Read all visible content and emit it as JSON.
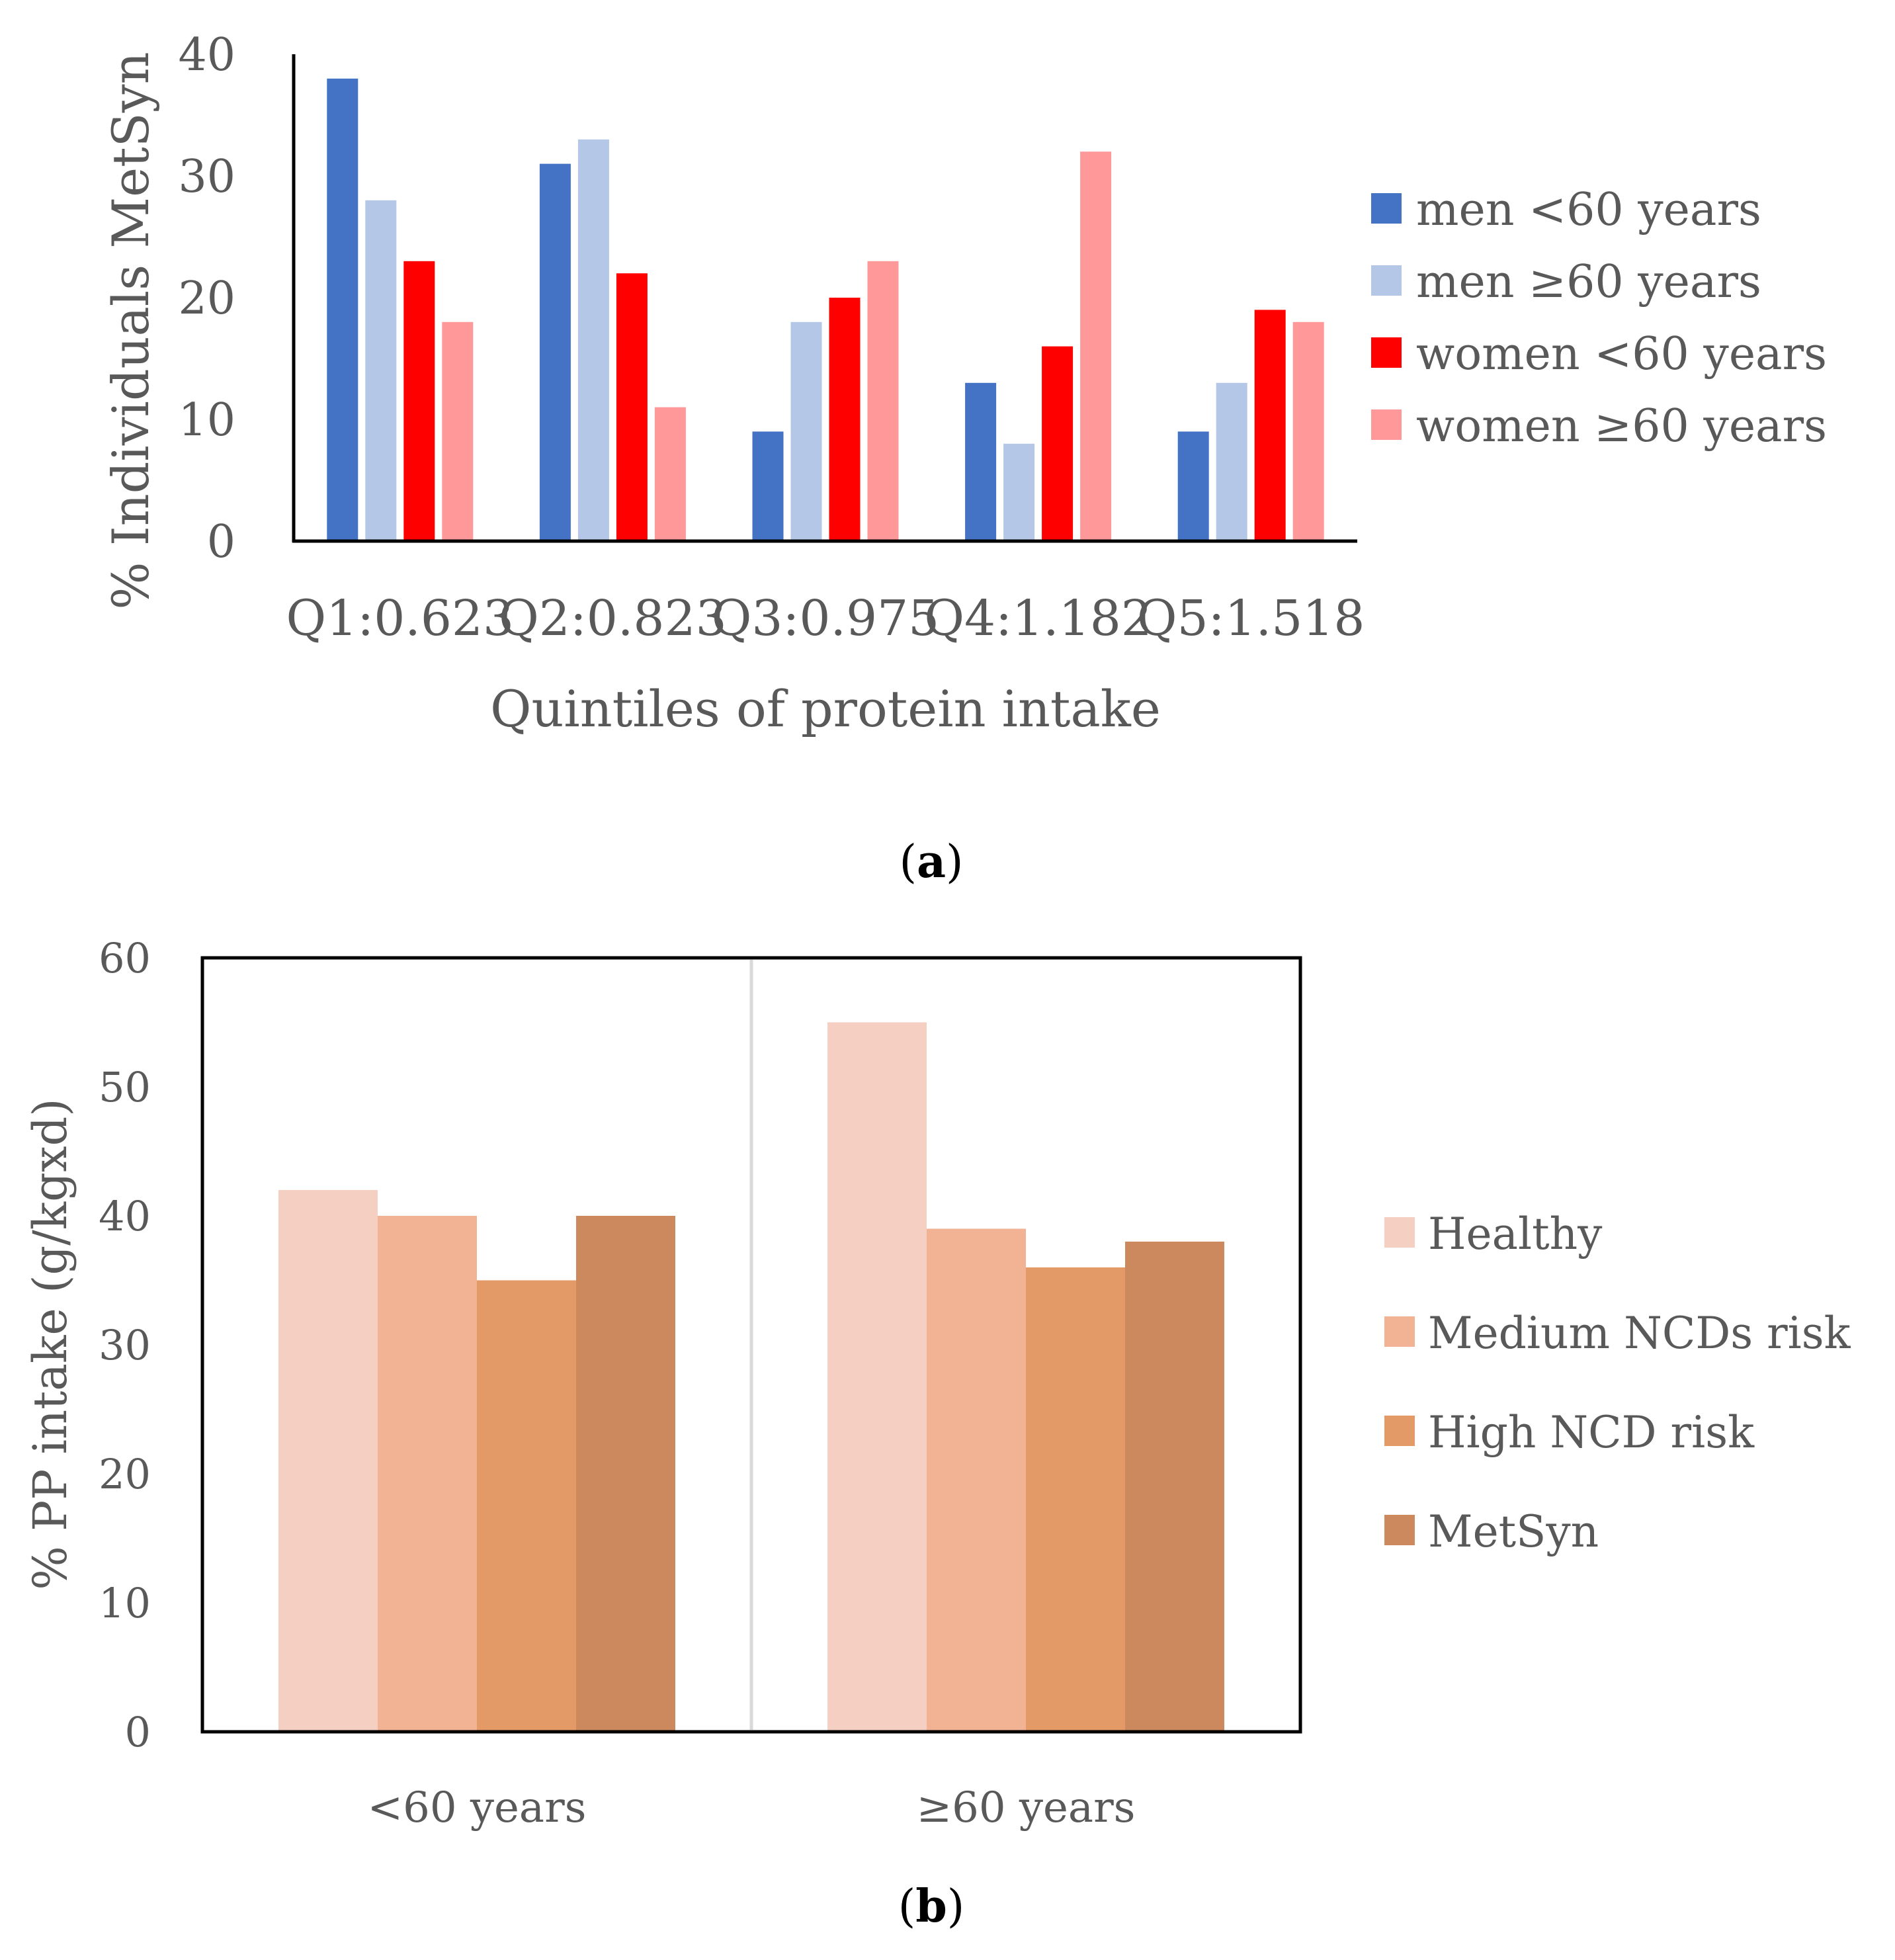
{
  "chart_data": [
    {
      "id": "a",
      "type": "bar",
      "caption": "a",
      "xlabel": "Quintiles of protein intake",
      "ylabel": "% Individuals MetSyn",
      "ylim": [
        0,
        40
      ],
      "yticks": [
        0,
        10,
        20,
        30,
        40
      ],
      "grid": false,
      "legend_position": "right",
      "categories": [
        "Q1:0.623",
        "Q2:0.823",
        "Q3:0.975",
        "Q4:1.182",
        "Q5:1.518"
      ],
      "series": [
        {
          "name": "men <60 years",
          "color": "#4472C4",
          "values": [
            38,
            31,
            9,
            13,
            9
          ]
        },
        {
          "name": "men ≥60 years",
          "color": "#B4C7E7",
          "values": [
            28,
            33,
            18,
            8,
            13
          ]
        },
        {
          "name": "women <60 years",
          "color": "#FF0000",
          "values": [
            23,
            22,
            20,
            16,
            19
          ]
        },
        {
          "name": "women ≥60 years",
          "color": "#FF9999",
          "values": [
            18,
            11,
            23,
            32,
            18
          ]
        }
      ]
    },
    {
      "id": "b",
      "type": "bar",
      "caption": "b",
      "xlabel": "",
      "ylabel": "%  PP intake (g/kgxd)",
      "ylim": [
        0,
        60
      ],
      "yticks": [
        0,
        10,
        20,
        30,
        40,
        50,
        60
      ],
      "grid": false,
      "legend_position": "right",
      "categories": [
        "<60 years",
        "≥60 years"
      ],
      "series": [
        {
          "name": "Healthy",
          "color": "#F5CFC2",
          "values": [
            42,
            55
          ]
        },
        {
          "name": "Medium NCDs risk",
          "color": "#F2B394",
          "values": [
            40,
            39
          ]
        },
        {
          "name": "High NCD risk",
          "color": "#E49A66",
          "values": [
            35,
            36
          ]
        },
        {
          "name": "MetSyn",
          "color": "#CC895D",
          "values": [
            40,
            38
          ]
        }
      ]
    }
  ]
}
